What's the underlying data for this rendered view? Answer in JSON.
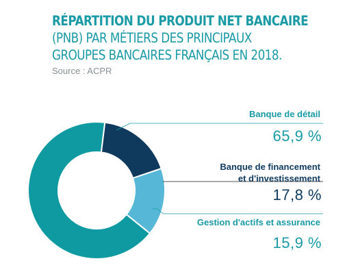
{
  "header": {
    "title_line1": "RÉPARTITION DU PRODUIT NET BANCAIRE",
    "title_line2": "(PNB) PAR MÉTIERS DES PRINCIPAUX",
    "title_line3": "GROUPES BANCAIRES FRANÇAIS EN 2018.",
    "source": "Source : ACPR"
  },
  "colors": {
    "title": "#1a9aa5",
    "retail": "#0f9aa2",
    "cib": "#0f3a5e",
    "asset": "#56b8d6"
  },
  "chart_data": {
    "type": "pie",
    "title": "RÉPARTITION DU PRODUIT NET BANCAIRE (PNB) PAR MÉTIERS DES PRINCIPAUX GROUPES BANCAIRES FRANÇAIS EN 2018.",
    "subtitle": "Source : ACPR",
    "donut": true,
    "series": [
      {
        "name_lines": [
          "Banque de détail"
        ],
        "value": 65.9,
        "label": "65,9 %",
        "color": "#0f9aa2"
      },
      {
        "name_lines": [
          "Banque de financement",
          "et d'investissement"
        ],
        "value": 17.8,
        "label": "17,8 %",
        "color": "#0f3a5e"
      },
      {
        "name_lines": [
          "Gestion d'actifs et assurance"
        ],
        "value": 15.9,
        "label": "15,9 %",
        "color": "#56b8d6"
      }
    ],
    "legend": "right"
  }
}
